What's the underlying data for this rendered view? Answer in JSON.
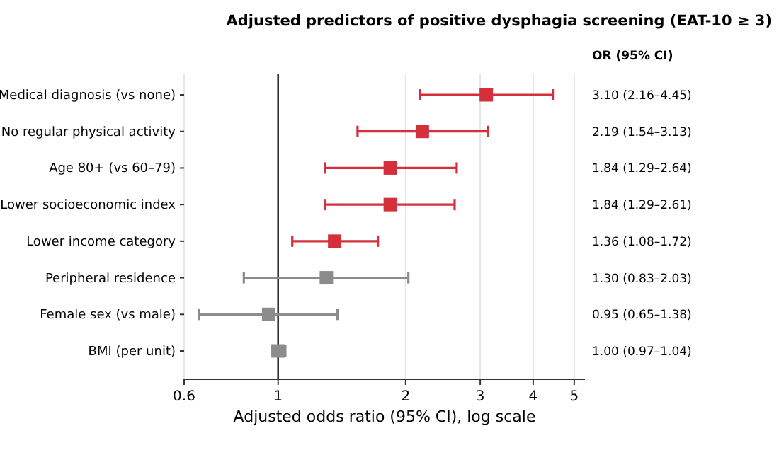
{
  "chart_data": {
    "type": "scatter",
    "orientation": "horizontal",
    "title": "Adjusted predictors of positive dysphagia screening (EAT-10 ≥ 3)",
    "xlabel": "Adjusted odds ratio (95% CI), log scale",
    "categories": [
      "Medical diagnosis (vs none)",
      "No regular physical activity",
      "Age 80+ (vs 60–79)",
      "Lower socioeconomic index",
      "Lower income category",
      "Peripheral residence",
      "Female sex (vs male)",
      "BMI (per unit)"
    ],
    "values": [
      3.1,
      2.19,
      1.84,
      1.84,
      1.36,
      1.3,
      0.95,
      1.0
    ],
    "errors": [
      [
        2.16,
        4.45
      ],
      [
        1.54,
        3.13
      ],
      [
        1.29,
        2.64
      ],
      [
        1.29,
        2.61
      ],
      [
        1.08,
        1.72
      ],
      [
        0.83,
        2.03
      ],
      [
        0.65,
        1.38
      ],
      [
        0.97,
        1.04
      ]
    ],
    "colors": [
      "#d62f3c",
      "#d62f3c",
      "#d62f3c",
      "#d62f3c",
      "#d62f3c",
      "#8c8c8c",
      "#8c8c8c",
      "#8c8c8c"
    ],
    "value_labels": [
      "3.10 (2.16–4.45)",
      "2.19 (1.54–3.13)",
      "1.84 (1.29–2.64)",
      "1.84 (1.29–2.61)",
      "1.36 (1.08–1.72)",
      "1.30 (0.83–2.03)",
      "0.95 (0.65–1.38)",
      "1.00 (0.97–1.04)"
    ],
    "annotations": [
      "OR (95% CI)"
    ],
    "log": "x",
    "xlim": [
      0.6,
      5.3
    ],
    "xticks": [
      0.6,
      1,
      2,
      3,
      4,
      5
    ],
    "grid": "x",
    "marker": "square",
    "ref_lines": [
      {
        "axis": "x",
        "value": 1,
        "color": "#333333"
      }
    ]
  }
}
